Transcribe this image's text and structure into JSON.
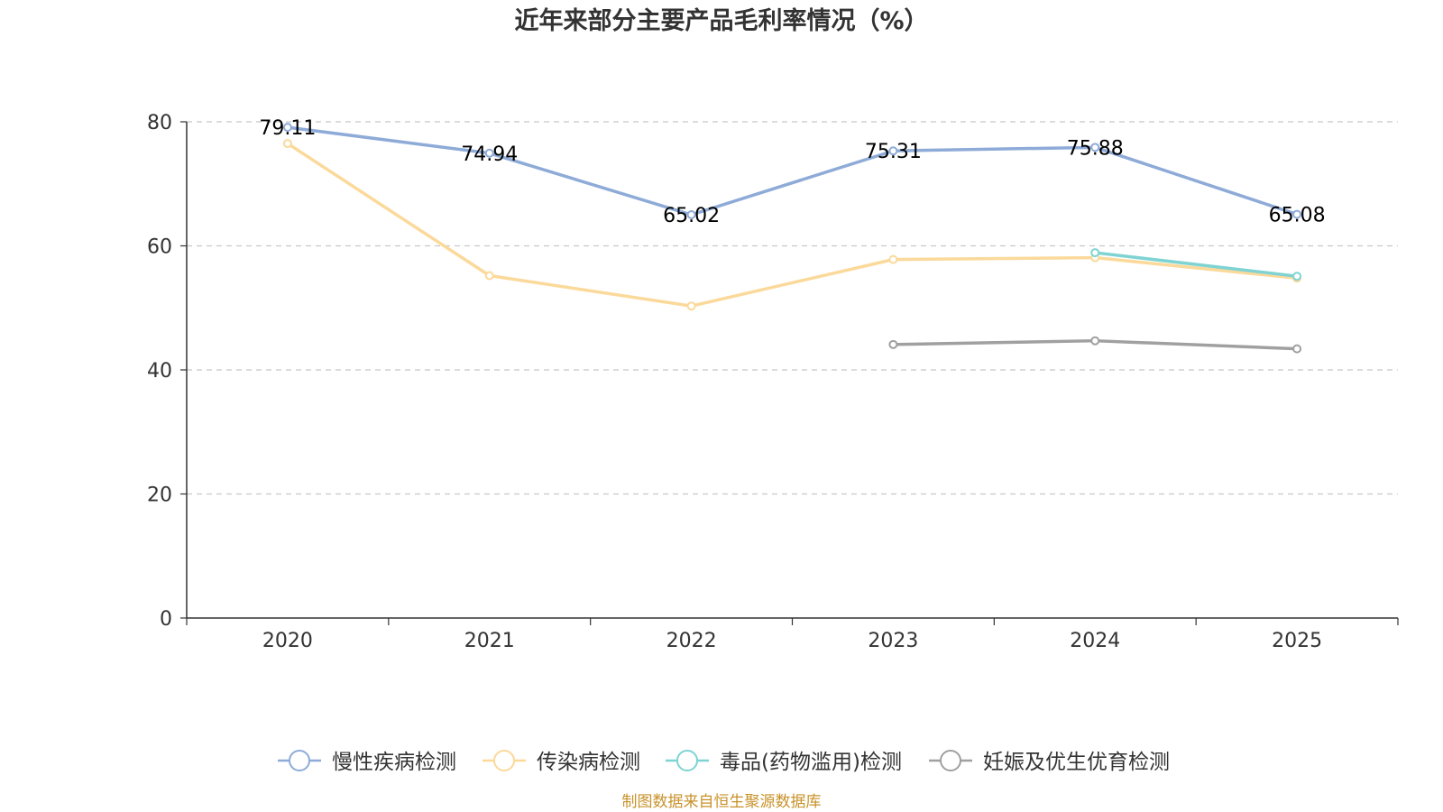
{
  "chart_data": {
    "type": "line",
    "title": "近年来部分主要产品毛利率情况（%）",
    "categories": [
      "2020",
      "2021",
      "2022",
      "2023",
      "2024",
      "2025"
    ],
    "ylim": [
      0,
      80
    ],
    "yticks": [
      0,
      20,
      40,
      60,
      80
    ],
    "grid": true,
    "legend_position": "bottom",
    "series": [
      {
        "name": "慢性疾病检测",
        "color": "#8eabd8",
        "values": [
          79.11,
          74.94,
          65.02,
          75.31,
          75.88,
          65.08
        ],
        "labels": [
          "79.11",
          "74.94",
          "65.02",
          "75.31",
          "75.88",
          "65.08"
        ]
      },
      {
        "name": "传染病检测",
        "color": "#fbd99a",
        "values": [
          76.5,
          55.2,
          50.3,
          57.8,
          58.1,
          54.8
        ],
        "labels": null
      },
      {
        "name": "毒品(药物滥用)检测",
        "color": "#7fd3d3",
        "values": [
          null,
          null,
          null,
          null,
          58.9,
          55.1
        ],
        "labels": null
      },
      {
        "name": "妊娠及优生优育检测",
        "color": "#a0a0a0",
        "values": [
          null,
          null,
          null,
          44.1,
          44.7,
          43.4
        ],
        "labels": null
      }
    ]
  },
  "source_note": "制图数据来自恒生聚源数据库"
}
